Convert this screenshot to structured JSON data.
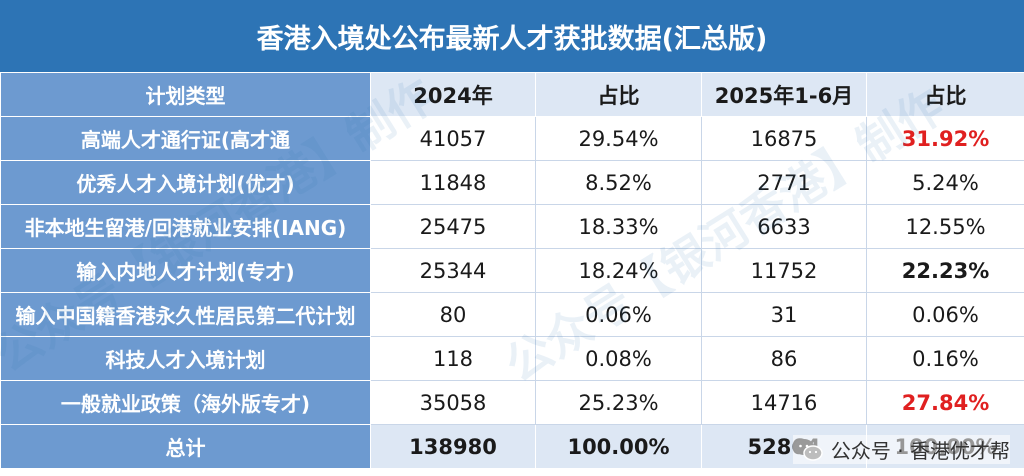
{
  "title": "香港入境处公布最新人才获批数据(汇总版)",
  "header": {
    "col_plan": "计划类型",
    "col_2024": "2024年",
    "col_share_1": "占比",
    "col_2025": "2025年1-6月",
    "col_share_2": "占比"
  },
  "rows": [
    {
      "plan": "高端人才通行证(高才通",
      "y2024": "41057",
      "share2024": "29.54%",
      "y2025": "16875",
      "share2025": "31.92%"
    },
    {
      "plan": "优秀人才入境计划(优才)",
      "y2024": "11848",
      "share2024": "8.52%",
      "y2025": "2771",
      "share2025": "5.24%"
    },
    {
      "plan": "非本地生留港/回港就业安排(IANG)",
      "y2024": "25475",
      "share2024": "18.33%",
      "y2025": "6633",
      "share2025": "12.55%"
    },
    {
      "plan": "输入内地人才计划(专才)",
      "y2024": "25344",
      "share2024": "18.24%",
      "y2025": "11752",
      "share2025": "22.23%"
    },
    {
      "plan": "输入中国籍香港永久性居民第二代计划",
      "y2024": "80",
      "share2024": "0.06%",
      "y2025": "31",
      "share2025": "0.06%"
    },
    {
      "plan": "科技人才入境计划",
      "y2024": "118",
      "share2024": "0.08%",
      "y2025": "86",
      "share2025": "0.16%"
    },
    {
      "plan": "一般就业政策（海外版专才)",
      "y2024": "35058",
      "share2024": "25.23%",
      "y2025": "14716",
      "share2025": "27.84%"
    }
  ],
  "total": {
    "plan": "总计",
    "y2024": "138980",
    "share2024": "100.00%",
    "y2025": "52864",
    "share2025": "100.00%"
  },
  "highlight_colors": {
    "red": "#e02020"
  },
  "watermark": "公众号【银河香港】制作",
  "badge": {
    "text": "公众号 · 香港优才帮",
    "icon": "wechat-icon"
  }
}
